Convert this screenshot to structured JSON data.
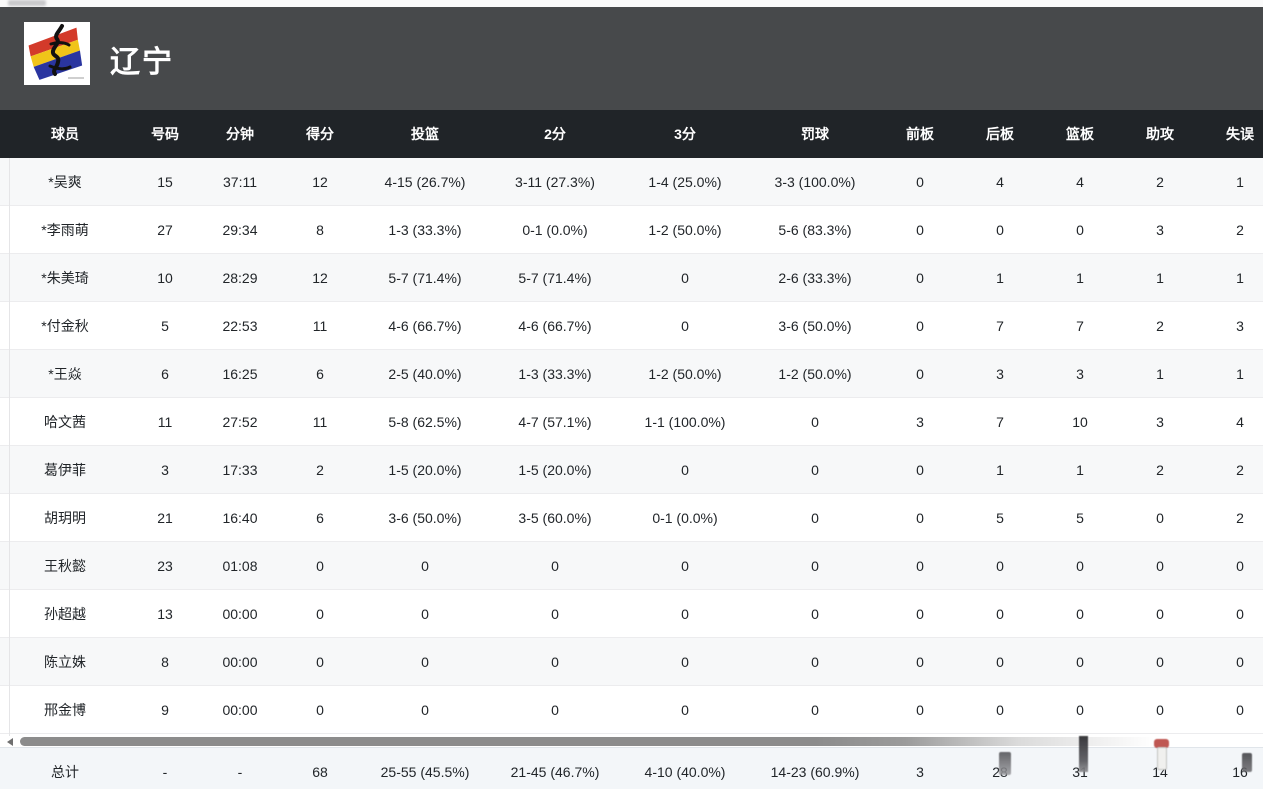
{
  "header": {
    "team_name": "辽宁",
    "logo_icon": "liaoning-flag-logo"
  },
  "table": {
    "columns": [
      "球员",
      "号码",
      "分钟",
      "得分",
      "投篮",
      "2分",
      "3分",
      "罚球",
      "前板",
      "后板",
      "篮板",
      "助攻",
      "失误"
    ],
    "rows": [
      [
        "*吴爽",
        "15",
        "37:11",
        "12",
        "4-15 (26.7%)",
        "3-11 (27.3%)",
        "1-4 (25.0%)",
        "3-3 (100.0%)",
        "0",
        "4",
        "4",
        "2",
        "1"
      ],
      [
        "*李雨萌",
        "27",
        "29:34",
        "8",
        "1-3 (33.3%)",
        "0-1 (0.0%)",
        "1-2 (50.0%)",
        "5-6 (83.3%)",
        "0",
        "0",
        "0",
        "3",
        "2"
      ],
      [
        "*朱美琦",
        "10",
        "28:29",
        "12",
        "5-7 (71.4%)",
        "5-7 (71.4%)",
        "0",
        "2-6 (33.3%)",
        "0",
        "1",
        "1",
        "1",
        "1"
      ],
      [
        "*付金秋",
        "5",
        "22:53",
        "11",
        "4-6 (66.7%)",
        "4-6 (66.7%)",
        "0",
        "3-6 (50.0%)",
        "0",
        "7",
        "7",
        "2",
        "3"
      ],
      [
        "*王焱",
        "6",
        "16:25",
        "6",
        "2-5 (40.0%)",
        "1-3 (33.3%)",
        "1-2 (50.0%)",
        "1-2 (50.0%)",
        "0",
        "3",
        "3",
        "1",
        "1"
      ],
      [
        "哈文茜",
        "11",
        "27:52",
        "11",
        "5-8 (62.5%)",
        "4-7 (57.1%)",
        "1-1 (100.0%)",
        "0",
        "3",
        "7",
        "10",
        "3",
        "4"
      ],
      [
        "葛伊菲",
        "3",
        "17:33",
        "2",
        "1-5 (20.0%)",
        "1-5 (20.0%)",
        "0",
        "0",
        "0",
        "1",
        "1",
        "2",
        "2"
      ],
      [
        "胡玥明",
        "21",
        "16:40",
        "6",
        "3-6 (50.0%)",
        "3-5 (60.0%)",
        "0-1 (0.0%)",
        "0",
        "0",
        "5",
        "5",
        "0",
        "2"
      ],
      [
        "王秋懿",
        "23",
        "01:08",
        "0",
        "0",
        "0",
        "0",
        "0",
        "0",
        "0",
        "0",
        "0",
        "0"
      ],
      [
        "孙超越",
        "13",
        "00:00",
        "0",
        "0",
        "0",
        "0",
        "0",
        "0",
        "0",
        "0",
        "0",
        "0"
      ],
      [
        "陈立姝",
        "8",
        "00:00",
        "0",
        "0",
        "0",
        "0",
        "0",
        "0",
        "0",
        "0",
        "0",
        "0"
      ],
      [
        "邢金博",
        "9",
        "00:00",
        "0",
        "0",
        "0",
        "0",
        "0",
        "0",
        "0",
        "0",
        "0",
        "0"
      ]
    ],
    "total_row": [
      "总计",
      "-",
      "-",
      "68",
      "25-55 (45.5%)",
      "21-45 (46.7%)",
      "4-10 (40.0%)",
      "14-23 (60.9%)",
      "3",
      "28",
      "31",
      "14",
      "16"
    ]
  },
  "scrollbar": {
    "left_arrow_icon": "scroll-left-arrow"
  },
  "colors": {
    "team_header_bg": "#47494b",
    "table_header_bg": "#202428",
    "row_alt_bg": "#f7f8f9",
    "total_row_bg": "#f3f6f9",
    "text": "#212529",
    "logo_red": "#d33a2a",
    "logo_yellow": "#f0c419",
    "logo_blue": "#2a35a0"
  }
}
